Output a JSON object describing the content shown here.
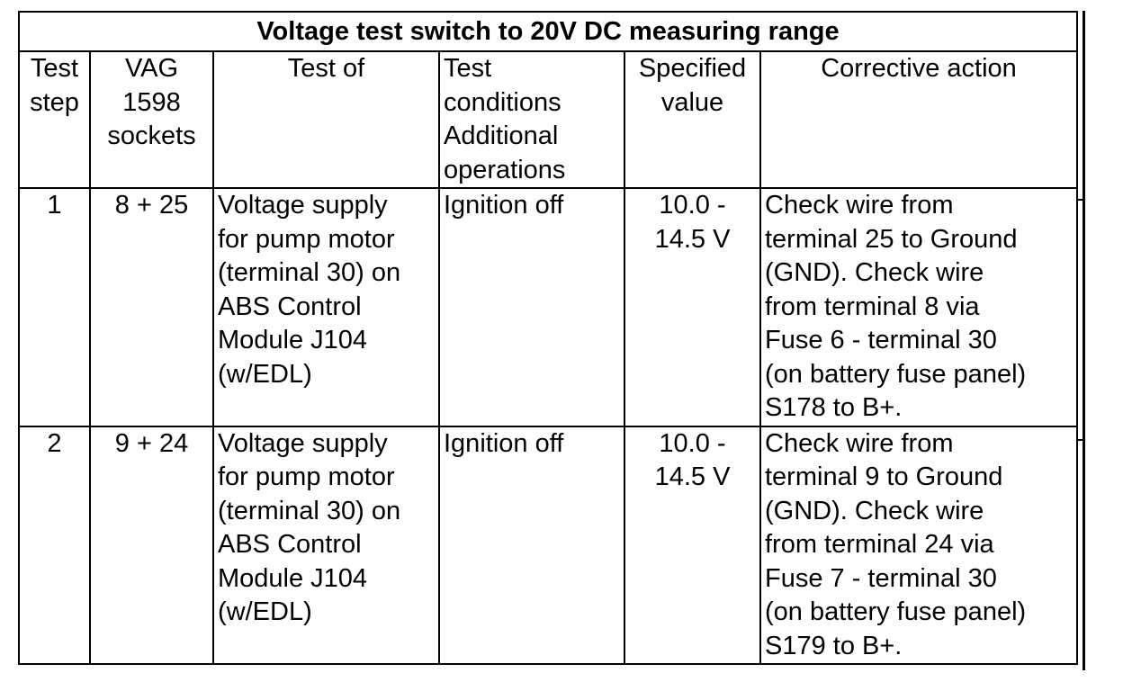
{
  "table": {
    "title": "Voltage test switch to 20V DC measuring range",
    "headers": [
      "Test\nstep",
      "VAG\n1598\nsockets",
      "Test of",
      "Test\nconditions\nAdditional\noperations",
      "Specified\nvalue",
      "Corrective action"
    ],
    "rows": [
      {
        "step": "1",
        "sockets": "8 + 25",
        "test_of": "Voltage supply\nfor pump motor\n(terminal 30) on\nABS Control\nModule J104\n(w/EDL)",
        "conditions": "Ignition off",
        "specified": "10.0 -\n14.5 V",
        "action": "Check wire from\nterminal 25 to Ground\n(GND). Check wire\nfrom terminal 8 via\nFuse 6 - terminal 30\n(on battery fuse panel)\nS178 to B+."
      },
      {
        "step": "2",
        "sockets": "9 + 24",
        "test_of": "Voltage supply\nfor pump motor\n(terminal 30) on\nABS Control\nModule J104\n(w/EDL)",
        "conditions": "Ignition off",
        "specified": "10.0 -\n14.5 V",
        "action": "Check wire from\nterminal 9 to Ground\n(GND). Check wire\nfrom terminal 24 via\nFuse 7 - terminal 30\n(on battery fuse panel)\nS179 to B+."
      }
    ]
  }
}
